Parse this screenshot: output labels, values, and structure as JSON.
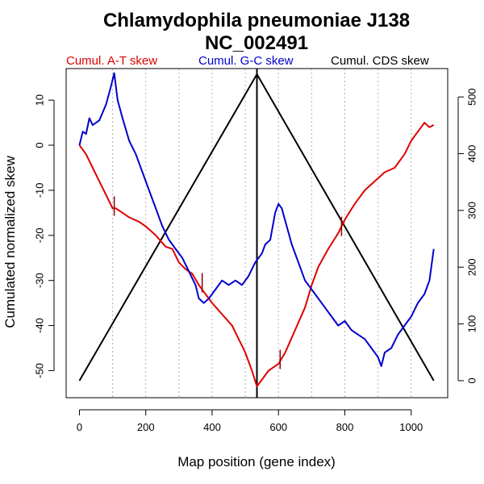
{
  "chart_data": {
    "type": "line",
    "title": "Chlamydophila pneumoniae J138",
    "subtitle": "NC_002491",
    "xlabel": "Map position (gene index)",
    "ylabel": "Cumulated normalized skew",
    "xlim": [
      -40,
      1110
    ],
    "ylim": [
      -56,
      17
    ],
    "y2lim": [
      -30,
      550
    ],
    "xticks": [
      "0",
      "200",
      "400",
      "600",
      "800",
      "1000"
    ],
    "yticks": [
      "10",
      "0",
      "-10",
      "-20",
      "-30",
      "-40",
      "-50"
    ],
    "y2ticks": [
      "500",
      "400",
      "300",
      "200",
      "100",
      "0"
    ],
    "grid_x": [
      100,
      200,
      300,
      400,
      500,
      600,
      700,
      800,
      900,
      1000
    ],
    "legend": [
      {
        "label": "Cumul. A-T skew",
        "color": "#dd0000"
      },
      {
        "label": "Cumul. G-C skew",
        "color": "#0000cc"
      },
      {
        "label": "Cumul. CDS skew",
        "color": "#000000"
      }
    ],
    "origin_line_x": 535,
    "series": [
      {
        "name": "Cumul. A-T skew",
        "axis": "left",
        "color": "#dd0000",
        "x": [
          0,
          20,
          40,
          60,
          80,
          100,
          110,
          130,
          150,
          180,
          200,
          230,
          260,
          280,
          300,
          320,
          340,
          360,
          380,
          400,
          430,
          460,
          480,
          500,
          520,
          535,
          550,
          570,
          600,
          620,
          650,
          680,
          700,
          720,
          750,
          780,
          800,
          830,
          860,
          890,
          920,
          950,
          980,
          1000,
          1020,
          1040,
          1055,
          1068
        ],
        "y": [
          0,
          -2,
          -5,
          -8,
          -11,
          -14,
          -14,
          -15,
          -16,
          -17,
          -18,
          -20,
          -22.5,
          -23,
          -26,
          -27.5,
          -28.5,
          -31,
          -33,
          -35,
          -37.5,
          -40,
          -43,
          -46,
          -50,
          -53.5,
          -52,
          -50,
          -48.5,
          -46,
          -41,
          -36,
          -31,
          -27,
          -23,
          -19.5,
          -16.5,
          -13,
          -10,
          -8,
          -6,
          -5,
          -2,
          1,
          3,
          5,
          4,
          4.5
        ]
      },
      {
        "name": "Cumul. G-C skew",
        "axis": "left",
        "color": "#0000cc",
        "x": [
          0,
          10,
          20,
          30,
          40,
          60,
          80,
          95,
          105,
          115,
          130,
          150,
          170,
          190,
          210,
          230,
          250,
          270,
          290,
          310,
          330,
          350,
          360,
          375,
          390,
          410,
          430,
          450,
          470,
          490,
          510,
          530,
          550,
          560,
          575,
          590,
          600,
          610,
          625,
          640,
          660,
          680,
          700,
          720,
          740,
          760,
          780,
          800,
          820,
          840,
          860,
          880,
          900,
          910,
          920,
          940,
          960,
          980,
          1000,
          1020,
          1040,
          1055,
          1068
        ],
        "y": [
          0,
          3,
          2.5,
          6,
          4.5,
          5.5,
          9,
          13,
          16,
          10,
          6,
          1,
          -2,
          -6,
          -10,
          -14,
          -18,
          -21,
          -23,
          -25,
          -28,
          -31,
          -34,
          -35,
          -34,
          -32,
          -30,
          -31,
          -30,
          -31,
          -29,
          -26,
          -24,
          -22,
          -21,
          -15,
          -13,
          -14,
          -18,
          -22,
          -26,
          -30,
          -32,
          -34,
          -36,
          -38,
          -40,
          -39,
          -41,
          -42,
          -43,
          -45,
          -47,
          -49,
          -46,
          -45,
          -42,
          -40,
          -38,
          -35,
          -33,
          -30,
          -23
        ]
      },
      {
        "name": "Cumul. CDS skew",
        "axis": "right",
        "color": "#000000",
        "x": [
          0,
          535,
          1068
        ],
        "y": [
          0,
          540,
          0
        ]
      }
    ],
    "tick_markers": [
      {
        "x": 105,
        "y": -13.5
      },
      {
        "x": 370,
        "y": -30.5
      },
      {
        "x": 605,
        "y": -47.5
      },
      {
        "x": 790,
        "y": -18
      }
    ]
  }
}
